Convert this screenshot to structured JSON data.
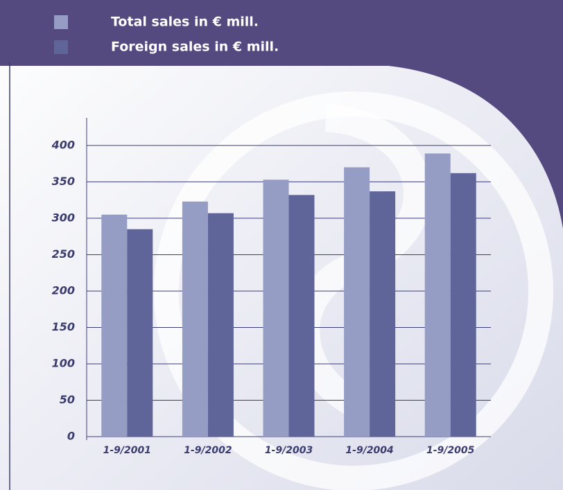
{
  "chart_data": {
    "type": "bar",
    "categories": [
      "1-9/2001",
      "1-9/2002",
      "1-9/2003",
      "1-9/2004",
      "1-9/2005"
    ],
    "series": [
      {
        "name": "Total sales in € mill.",
        "color": "#959dc5",
        "values": [
          305,
          323,
          353,
          370,
          389
        ]
      },
      {
        "name": "Foreign sales in € mill.",
        "color": "#5f6599",
        "values": [
          285,
          307,
          332,
          337,
          362
        ]
      }
    ],
    "ylim": [
      0,
      438
    ],
    "yticks": [
      0,
      50,
      100,
      150,
      200,
      250,
      300,
      350,
      400
    ],
    "grid": true,
    "legend": "top-left"
  }
}
